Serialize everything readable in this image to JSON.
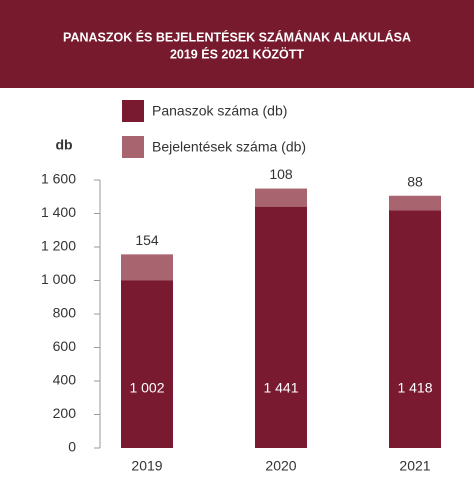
{
  "chart_data": {
    "type": "stacked_bar",
    "title": [
      "PANASZOK ÉS BEJELENTÉSEK SZÁMÁNAK ALAKULÁSA",
      "2019 ÉS 2021 KÖZÖTT"
    ],
    "y_label": "db",
    "categories": [
      "2019",
      "2020",
      "2021"
    ],
    "series": [
      {
        "name": "Panaszok száma (db)",
        "color": "#7a1a30",
        "values": [
          1002,
          1441,
          1418
        ],
        "value_labels": [
          "1 002",
          "1 441",
          "1 418"
        ]
      },
      {
        "name": "Bejelentések száma (db)",
        "color": "#a9656f",
        "values": [
          154,
          108,
          88
        ]
      }
    ],
    "ylim": [
      0,
      1600
    ],
    "yticks": [
      0,
      200,
      400,
      600,
      800,
      {
        "value": 1000,
        "label": "1 000"
      },
      {
        "value": 1200,
        "label": "1 200"
      },
      {
        "value": 1400,
        "label": "1 400"
      },
      {
        "value": 1600,
        "label": "1 600"
      }
    ]
  }
}
